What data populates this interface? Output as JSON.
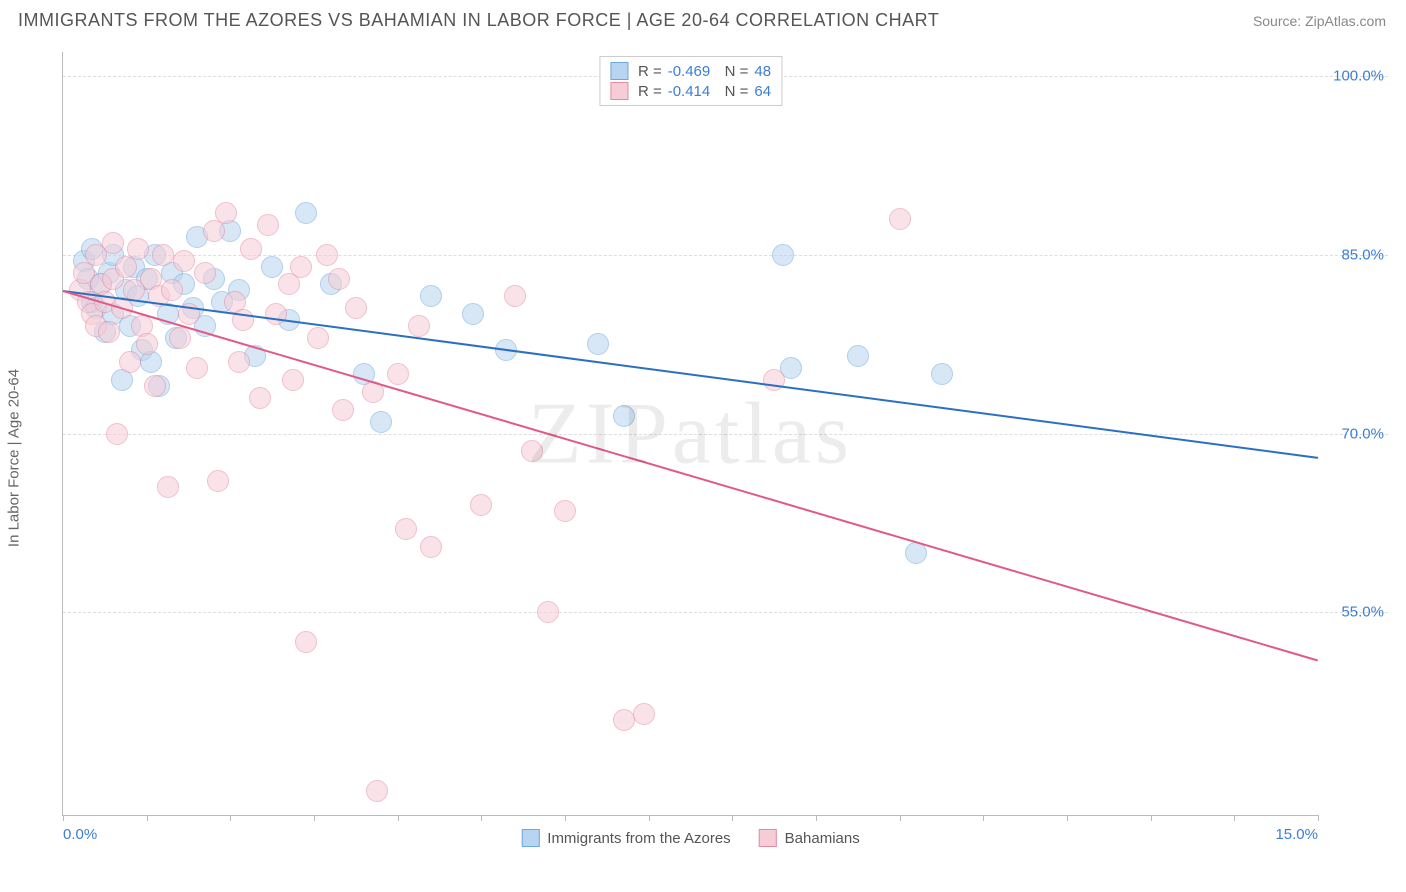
{
  "header": {
    "title": "IMMIGRANTS FROM THE AZORES VS BAHAMIAN IN LABOR FORCE | AGE 20-64 CORRELATION CHART",
    "source": "Source: ZipAtlas.com"
  },
  "chart": {
    "type": "scatter",
    "y_label": "In Labor Force | Age 20-64",
    "watermark": "ZIPatlas",
    "background_color": "#ffffff",
    "grid_color": "#dddddd",
    "axis_color": "#bbbbbb",
    "xlim": [
      0.0,
      15.0
    ],
    "ylim": [
      38.0,
      102.0
    ],
    "y_ticks": [
      {
        "v": 100.0,
        "label": "100.0%"
      },
      {
        "v": 85.0,
        "label": "85.0%"
      },
      {
        "v": 70.0,
        "label": "70.0%"
      },
      {
        "v": 55.0,
        "label": "55.0%"
      }
    ],
    "x_ticks_minor": [
      0,
      1,
      2,
      3,
      4,
      5,
      6,
      7,
      8,
      9,
      10,
      11,
      12,
      13,
      14,
      15
    ],
    "x_tick_labels": [
      {
        "v": 0.0,
        "label": "0.0%",
        "cls": "left"
      },
      {
        "v": 15.0,
        "label": "15.0%",
        "cls": "right"
      }
    ],
    "point_radius": 11,
    "point_opacity": 0.55,
    "series": [
      {
        "name": "Immigrants from the Azores",
        "fill": "#b7d4f0",
        "stroke": "#6fa8dc",
        "line_color": "#2b6fc2",
        "R": "-0.469",
        "N": "48",
        "trend": {
          "x1": 0.0,
          "y1": 82.0,
          "x2": 15.0,
          "y2": 68.0
        },
        "points": [
          [
            0.25,
            84.5
          ],
          [
            0.3,
            83.0
          ],
          [
            0.35,
            81.0
          ],
          [
            0.35,
            85.5
          ],
          [
            0.4,
            80.5
          ],
          [
            0.45,
            82.5
          ],
          [
            0.5,
            78.5
          ],
          [
            0.55,
            83.5
          ],
          [
            0.6,
            80.0
          ],
          [
            0.6,
            85.0
          ],
          [
            0.7,
            74.5
          ],
          [
            0.75,
            82.0
          ],
          [
            0.8,
            79.0
          ],
          [
            0.85,
            84.0
          ],
          [
            0.9,
            81.5
          ],
          [
            0.95,
            77.0
          ],
          [
            1.0,
            83.0
          ],
          [
            1.05,
            76.0
          ],
          [
            1.1,
            85.0
          ],
          [
            1.15,
            74.0
          ],
          [
            1.25,
            80.0
          ],
          [
            1.3,
            83.5
          ],
          [
            1.35,
            78.0
          ],
          [
            1.45,
            82.5
          ],
          [
            1.55,
            80.5
          ],
          [
            1.6,
            86.5
          ],
          [
            1.7,
            79.0
          ],
          [
            1.8,
            83.0
          ],
          [
            1.9,
            81.0
          ],
          [
            2.0,
            87.0
          ],
          [
            2.1,
            82.0
          ],
          [
            2.3,
            76.5
          ],
          [
            2.5,
            84.0
          ],
          [
            2.7,
            79.5
          ],
          [
            2.9,
            88.5
          ],
          [
            3.2,
            82.5
          ],
          [
            3.6,
            75.0
          ],
          [
            3.8,
            71.0
          ],
          [
            4.4,
            81.5
          ],
          [
            4.9,
            80.0
          ],
          [
            5.3,
            77.0
          ],
          [
            6.4,
            77.5
          ],
          [
            6.7,
            71.5
          ],
          [
            8.6,
            85.0
          ],
          [
            8.7,
            75.5
          ],
          [
            9.5,
            76.5
          ],
          [
            10.2,
            60.0
          ],
          [
            10.5,
            75.0
          ]
        ]
      },
      {
        "name": "Bahamians",
        "fill": "#f6cdd7",
        "stroke": "#e48ba3",
        "line_color": "#e15a87",
        "R": "-0.414",
        "N": "64",
        "trend": {
          "x1": 0.0,
          "y1": 82.0,
          "x2": 15.0,
          "y2": 51.0
        },
        "points": [
          [
            0.2,
            82.0
          ],
          [
            0.25,
            83.5
          ],
          [
            0.3,
            81.0
          ],
          [
            0.35,
            80.0
          ],
          [
            0.4,
            85.0
          ],
          [
            0.4,
            79.0
          ],
          [
            0.45,
            82.5
          ],
          [
            0.5,
            81.0
          ],
          [
            0.55,
            78.5
          ],
          [
            0.6,
            83.0
          ],
          [
            0.6,
            86.0
          ],
          [
            0.65,
            70.0
          ],
          [
            0.7,
            80.5
          ],
          [
            0.75,
            84.0
          ],
          [
            0.8,
            76.0
          ],
          [
            0.85,
            82.0
          ],
          [
            0.9,
            85.5
          ],
          [
            0.95,
            79.0
          ],
          [
            1.0,
            77.5
          ],
          [
            1.05,
            83.0
          ],
          [
            1.1,
            74.0
          ],
          [
            1.15,
            81.5
          ],
          [
            1.2,
            85.0
          ],
          [
            1.25,
            65.5
          ],
          [
            1.3,
            82.0
          ],
          [
            1.4,
            78.0
          ],
          [
            1.45,
            84.5
          ],
          [
            1.5,
            80.0
          ],
          [
            1.6,
            75.5
          ],
          [
            1.7,
            83.5
          ],
          [
            1.8,
            87.0
          ],
          [
            1.85,
            66.0
          ],
          [
            1.95,
            88.5
          ],
          [
            2.05,
            81.0
          ],
          [
            2.1,
            76.0
          ],
          [
            2.15,
            79.5
          ],
          [
            2.25,
            85.5
          ],
          [
            2.35,
            73.0
          ],
          [
            2.45,
            87.5
          ],
          [
            2.55,
            80.0
          ],
          [
            2.7,
            82.5
          ],
          [
            2.75,
            74.5
          ],
          [
            2.85,
            84.0
          ],
          [
            2.9,
            52.5
          ],
          [
            3.05,
            78.0
          ],
          [
            3.15,
            85.0
          ],
          [
            3.3,
            83.0
          ],
          [
            3.35,
            72.0
          ],
          [
            3.5,
            80.5
          ],
          [
            3.7,
            73.5
          ],
          [
            3.75,
            40.0
          ],
          [
            4.0,
            75.0
          ],
          [
            4.1,
            62.0
          ],
          [
            4.25,
            79.0
          ],
          [
            4.4,
            60.5
          ],
          [
            5.0,
            64.0
          ],
          [
            5.4,
            81.5
          ],
          [
            5.6,
            68.5
          ],
          [
            5.8,
            55.0
          ],
          [
            6.0,
            63.5
          ],
          [
            6.7,
            46.0
          ],
          [
            6.95,
            46.5
          ],
          [
            8.5,
            74.5
          ],
          [
            10.0,
            88.0
          ]
        ]
      }
    ],
    "x_legend": {
      "items": [
        {
          "label": "Immigrants from the Azores",
          "fill": "#b7d4f0",
          "stroke": "#6fa8dc"
        },
        {
          "label": "Bahamians",
          "fill": "#f6cdd7",
          "stroke": "#e48ba3"
        }
      ]
    }
  }
}
